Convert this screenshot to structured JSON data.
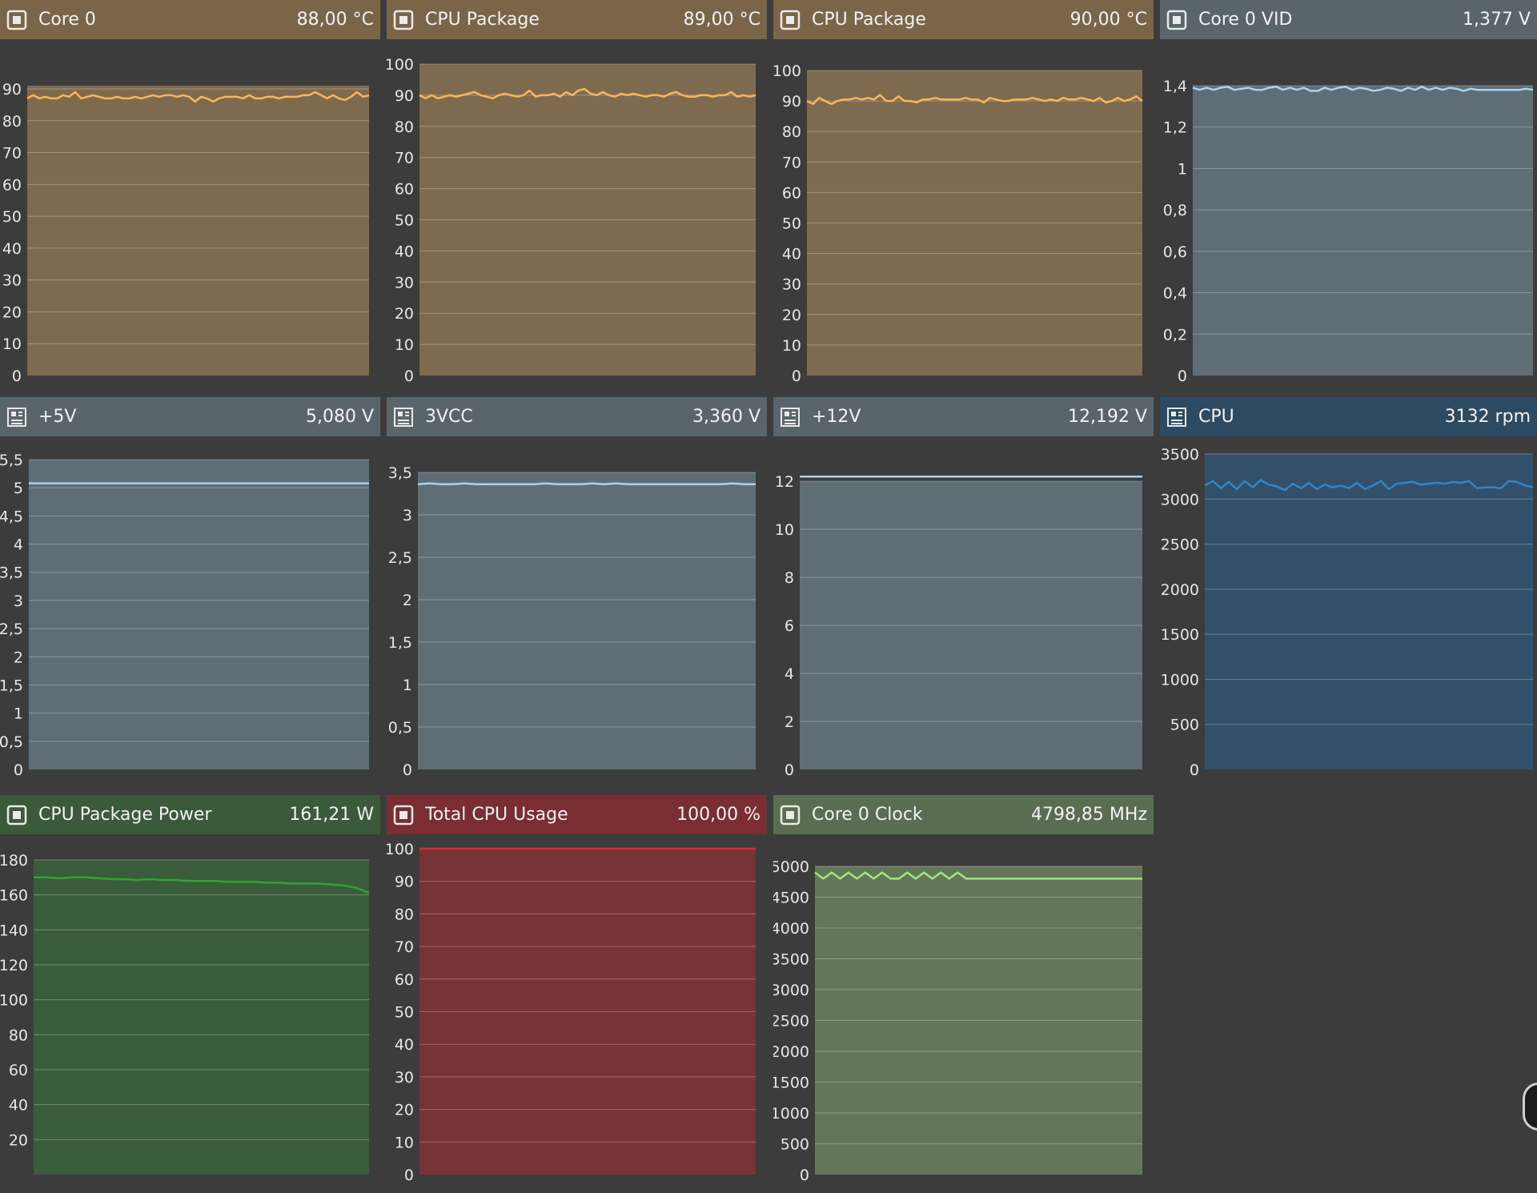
{
  "colors": {
    "background": "#3c3c3c",
    "temp_header": "#7b6548",
    "temp_plot": "#7e6a4f",
    "temp_line": "#ffb45a",
    "volt_header": "#59656b",
    "volt_plot": "#5f6d75",
    "volt_line": "#a9d2f0",
    "fan_header": "#2c4a62",
    "fan_plot": "#33506a",
    "fan_line": "#2e86cc",
    "power_header": "#3a5a3a",
    "power_plot": "#3b5c3a",
    "power_line": "#31a331",
    "usage_header": "#7a2e31",
    "usage_plot": "#773335",
    "usage_line": "#d03232",
    "clock_header": "#5b6d50",
    "clock_plot": "#637659",
    "clock_line": "#9ee87a"
  },
  "panels": [
    {
      "title": "Core 0",
      "value": "88,00 °C",
      "icon": "cpu-chip-icon"
    },
    {
      "title": "CPU Package",
      "value": "89,00 °C",
      "icon": "cpu-chip-icon"
    },
    {
      "title": "CPU Package",
      "value": "90,00 °C",
      "icon": "cpu-chip-icon"
    },
    {
      "title": "Core 0 VID",
      "value": "1,377 V",
      "icon": "cpu-chip-icon"
    },
    {
      "title": "+5V",
      "value": "5,080 V",
      "icon": "motherboard-icon"
    },
    {
      "title": "3VCC",
      "value": "3,360 V",
      "icon": "motherboard-icon"
    },
    {
      "title": "+12V",
      "value": "12,192 V",
      "icon": "motherboard-icon"
    },
    {
      "title": "CPU",
      "value": "3132 rpm",
      "icon": "motherboard-icon"
    },
    {
      "title": "CPU Package Power",
      "value": "161,21 W",
      "icon": "cpu-chip-icon"
    },
    {
      "title": "Total CPU Usage",
      "value": "100,00 %",
      "icon": "cpu-chip-icon"
    },
    {
      "title": "Core 0 Clock",
      "value": "4798,85 MHz",
      "icon": "cpu-chip-icon"
    }
  ],
  "chart_data": [
    {
      "type": "line",
      "ylim": [
        0,
        91
      ],
      "yticks": {
        "values": [
          0,
          10,
          20,
          30,
          40,
          50,
          60,
          70,
          80,
          90
        ],
        "labels": [
          "0",
          "10",
          "20",
          "30",
          "40",
          "50",
          "60",
          "70",
          "80",
          "90"
        ]
      },
      "series": [
        {
          "values": [
            87,
            88,
            87,
            87.5,
            87,
            87,
            88,
            87.5,
            89,
            87,
            87.5,
            88,
            87.5,
            87,
            87,
            87.5,
            87,
            87,
            87.5,
            87,
            87.5,
            88,
            87.5,
            88,
            88,
            87.5,
            88,
            87.5,
            86,
            87.5,
            87,
            86,
            87,
            87.5,
            87.5,
            87.5,
            87,
            88,
            87,
            87,
            87.5,
            87.5,
            87,
            87.5,
            87.5,
            87.5,
            88,
            88,
            89,
            88,
            87,
            88,
            87,
            86.5,
            87.5,
            89,
            87.5,
            88
          ]
        }
      ]
    },
    {
      "type": "line",
      "ylim": [
        0,
        100
      ],
      "yticks": {
        "values": [
          0,
          10,
          20,
          30,
          40,
          50,
          60,
          70,
          80,
          90,
          100
        ],
        "labels": [
          "0",
          "10",
          "20",
          "30",
          "40",
          "50",
          "60",
          "70",
          "80",
          "90",
          "100"
        ]
      },
      "series": [
        {
          "values": [
            90,
            89,
            90,
            89,
            89.5,
            90,
            89.5,
            90,
            90.5,
            91,
            90,
            89.5,
            89,
            90,
            90.5,
            90,
            89.5,
            90,
            91.5,
            89.5,
            90,
            90,
            90.5,
            89.5,
            91,
            90,
            91.5,
            92,
            90.5,
            90,
            91,
            90,
            89.5,
            90.5,
            90,
            90.5,
            90,
            89.5,
            90,
            90,
            89.5,
            90.5,
            91,
            90,
            89.5,
            89.5,
            90,
            90,
            89.5,
            90,
            90,
            91,
            89.5,
            90,
            89.5,
            90
          ]
        }
      ]
    },
    {
      "type": "line",
      "ylim": [
        0,
        100
      ],
      "yticks": {
        "values": [
          0,
          10,
          20,
          30,
          40,
          50,
          60,
          70,
          80,
          90,
          100
        ],
        "labels": [
          "0",
          "10",
          "20",
          "30",
          "40",
          "50",
          "60",
          "70",
          "80",
          "90",
          "100"
        ]
      },
      "series": [
        {
          "values": [
            90,
            89,
            91,
            90,
            89,
            90,
            90.5,
            90.5,
            91,
            90.5,
            91,
            90.5,
            92,
            90,
            90,
            91.5,
            90,
            90,
            89.5,
            90.5,
            90.5,
            91,
            90.5,
            90.5,
            90.5,
            90.5,
            91,
            90.5,
            90.5,
            89.5,
            91,
            90.5,
            90,
            90,
            90.5,
            90.5,
            90.5,
            91,
            90.5,
            90,
            90.5,
            90,
            91,
            90.5,
            90.5,
            91,
            90.5,
            90,
            91,
            89.5,
            90,
            91,
            90,
            90.5,
            91.5,
            90
          ]
        }
      ]
    },
    {
      "type": "line",
      "ylim": [
        0,
        1.4
      ],
      "yticks": {
        "values": [
          0,
          0.2,
          0.4,
          0.6,
          0.8,
          1,
          1.2,
          1.4
        ],
        "labels": [
          "0",
          "0,2",
          "0,4",
          "0,6",
          "0,8",
          "1",
          "1,2",
          "1,4"
        ]
      },
      "series": [
        {
          "values": [
            1.39,
            1.38,
            1.39,
            1.38,
            1.39,
            1.395,
            1.38,
            1.385,
            1.39,
            1.38,
            1.38,
            1.39,
            1.395,
            1.38,
            1.39,
            1.38,
            1.39,
            1.375,
            1.375,
            1.39,
            1.38,
            1.39,
            1.395,
            1.38,
            1.39,
            1.385,
            1.375,
            1.38,
            1.39,
            1.385,
            1.375,
            1.39,
            1.38,
            1.395,
            1.38,
            1.39,
            1.38,
            1.39,
            1.385,
            1.375,
            1.385,
            1.38,
            1.38,
            1.38,
            1.38,
            1.38,
            1.38,
            1.38,
            1.385,
            1.38
          ]
        }
      ]
    },
    {
      "type": "line",
      "ylim": [
        0,
        5.5
      ],
      "yticks": {
        "values": [
          0,
          0.5,
          1,
          1.5,
          2,
          2.5,
          3,
          3.5,
          4,
          4.5,
          5,
          5.5
        ],
        "labels": [
          "0",
          "0,5",
          "1",
          "1,5",
          "2",
          "2,5",
          "3",
          "3,5",
          "4",
          "4,5",
          "5",
          "5,5"
        ]
      },
      "series": [
        {
          "values": [
            5.08,
            5.08,
            5.08,
            5.08,
            5.08,
            5.08,
            5.08,
            5.08,
            5.08,
            5.08,
            5.08,
            5.08,
            5.08,
            5.08,
            5.08,
            5.08,
            5.08,
            5.08,
            5.08,
            5.08
          ]
        }
      ]
    },
    {
      "type": "line",
      "ylim": [
        0,
        3.5
      ],
      "yticks": {
        "values": [
          0,
          0.5,
          1,
          1.5,
          2,
          2.5,
          3,
          3.5
        ],
        "labels": [
          "0",
          "0,5",
          "1",
          "1,5",
          "2",
          "2,5",
          "3",
          "3,5"
        ]
      },
      "series": [
        {
          "values": [
            3.36,
            3.37,
            3.36,
            3.36,
            3.37,
            3.36,
            3.36,
            3.36,
            3.36,
            3.36,
            3.36,
            3.37,
            3.36,
            3.36,
            3.36,
            3.37,
            3.36,
            3.37,
            3.36,
            3.36,
            3.36,
            3.36,
            3.36,
            3.36,
            3.36,
            3.36,
            3.36,
            3.37,
            3.36,
            3.36
          ]
        }
      ]
    },
    {
      "type": "line",
      "ylim": [
        0,
        12
      ],
      "yticks": {
        "values": [
          0,
          2,
          4,
          6,
          8,
          10,
          12
        ],
        "labels": [
          "0",
          "2",
          "4",
          "6",
          "8",
          "10",
          "12"
        ]
      },
      "series": [
        {
          "values": [
            12.19,
            12.19,
            12.19,
            12.19,
            12.19,
            12.19,
            12.19,
            12.19,
            12.19,
            12.19,
            12.19,
            12.19,
            12.19,
            12.19,
            12.19,
            12.19,
            12.19,
            12.19,
            12.19,
            12.19
          ]
        }
      ]
    },
    {
      "type": "area",
      "ylim": [
        0,
        3500
      ],
      "yticks": {
        "values": [
          0,
          500,
          1000,
          1500,
          2000,
          2500,
          3000,
          3500
        ],
        "labels": [
          "0",
          "500",
          "1000",
          "1500",
          "2000",
          "2500",
          "3000",
          "3500"
        ]
      },
      "series": [
        {
          "values": [
            3150,
            3200,
            3120,
            3190,
            3110,
            3200,
            3130,
            3210,
            3160,
            3140,
            3100,
            3170,
            3120,
            3180,
            3110,
            3160,
            3130,
            3150,
            3120,
            3180,
            3110,
            3150,
            3200,
            3110,
            3170,
            3180,
            3190,
            3160,
            3170,
            3180,
            3170,
            3190,
            3180,
            3200,
            3120,
            3130,
            3130,
            3120,
            3200,
            3190,
            3150,
            3130
          ]
        }
      ]
    },
    {
      "type": "area",
      "ylim": [
        0,
        180
      ],
      "yticks": {
        "values": [
          20,
          40,
          60,
          80,
          100,
          120,
          140,
          160,
          180
        ],
        "labels": [
          "20",
          "40",
          "60",
          "80",
          "100",
          "120",
          "140",
          "160",
          "180"
        ]
      },
      "series": [
        {
          "values": [
            170,
            170,
            169.5,
            170,
            170,
            169.5,
            169,
            169,
            168.5,
            169,
            168.5,
            168.5,
            168,
            168,
            168,
            167.5,
            167.5,
            167.5,
            167,
            167,
            166.5,
            166.5,
            166.5,
            166,
            165.5,
            164,
            161.2
          ]
        }
      ]
    },
    {
      "type": "area",
      "ylim": [
        0,
        100
      ],
      "yticks": {
        "values": [
          0,
          10,
          20,
          30,
          40,
          50,
          60,
          70,
          80,
          90,
          100
        ],
        "labels": [
          "0",
          "10",
          "20",
          "30",
          "40",
          "50",
          "60",
          "70",
          "80",
          "90",
          "100"
        ]
      },
      "series": [
        {
          "values": [
            100,
            100,
            100,
            100,
            100,
            100,
            100,
            100,
            100,
            100
          ]
        }
      ]
    },
    {
      "type": "area",
      "ylim": [
        0,
        5000
      ],
      "yticks": {
        "values": [
          0,
          500,
          1000,
          1500,
          2000,
          2500,
          3000,
          3500,
          4000,
          4500,
          5000
        ],
        "labels": [
          "0",
          "500",
          "1000",
          "1500",
          "2000",
          "2500",
          "3000",
          "3500",
          "4000",
          "4500",
          "5000"
        ]
      },
      "series": [
        {
          "values": [
            4900,
            4800,
            4900,
            4800,
            4900,
            4800,
            4900,
            4800,
            4900,
            4800,
            4800,
            4900,
            4800,
            4900,
            4800,
            4900,
            4800,
            4900,
            4800,
            4800,
            4800,
            4800,
            4800,
            4800,
            4800,
            4800,
            4800,
            4800,
            4800,
            4800,
            4800,
            4800,
            4800,
            4800,
            4800,
            4800,
            4800,
            4800,
            4800,
            4800
          ]
        }
      ]
    }
  ]
}
